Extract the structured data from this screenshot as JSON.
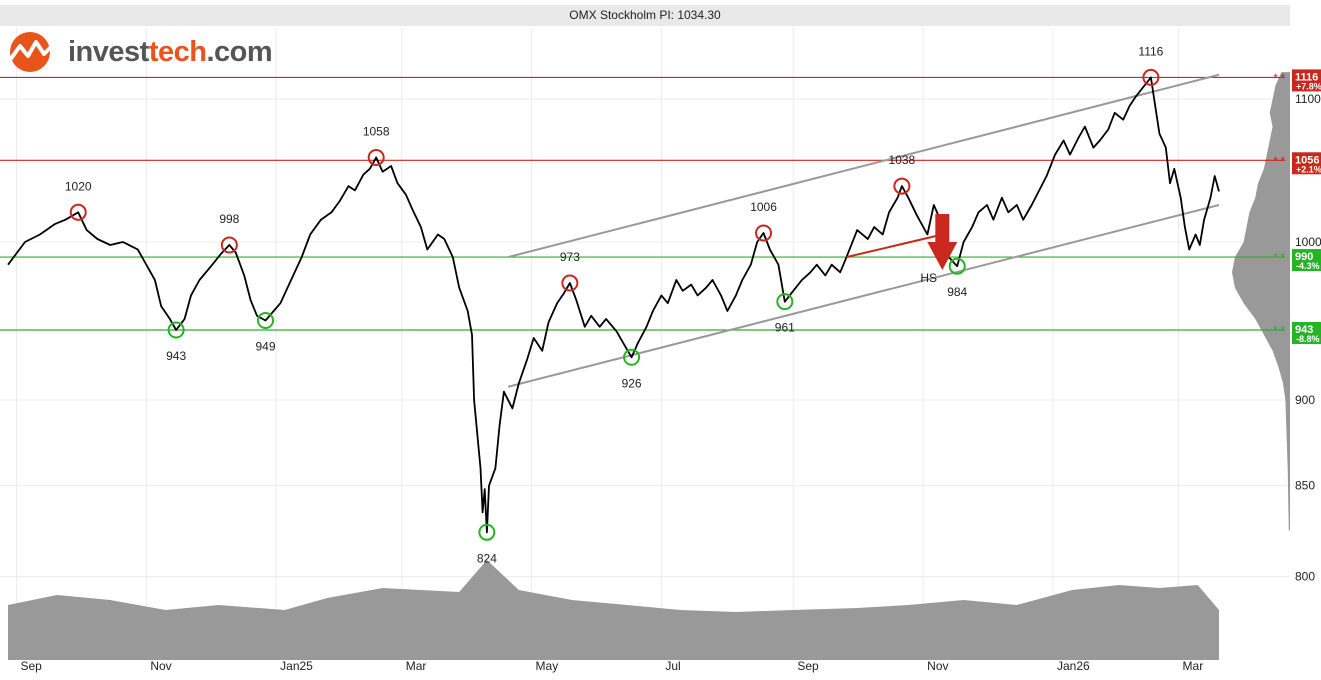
{
  "chart_data": {
    "type": "line",
    "title": "OMX Stockholm PI: 1034.30",
    "last_value": 1034.3,
    "y_axis": {
      "scale": "log",
      "position": "right",
      "ticks": [
        800,
        850,
        900,
        1000,
        1100
      ]
    },
    "x_axis": {
      "labels": [
        "Sep",
        "Nov",
        "Jan25",
        "Mar",
        "May",
        "Jul",
        "Sep",
        "Nov",
        "Jan26",
        "Mar"
      ],
      "start": "2024-08-28",
      "end": "2026-03-20"
    },
    "grid": true,
    "series": [
      {
        "points": [
          [
            "2024-08-28",
            985
          ],
          [
            "2024-09-05",
            1000
          ],
          [
            "2024-09-12",
            1005
          ],
          [
            "2024-09-19",
            1012
          ],
          [
            "2024-09-24",
            1015
          ],
          [
            "2024-09-30",
            1020
          ],
          [
            "2024-10-04",
            1008
          ],
          [
            "2024-10-09",
            1002
          ],
          [
            "2024-10-15",
            998
          ],
          [
            "2024-10-21",
            1000
          ],
          [
            "2024-10-28",
            995
          ],
          [
            "2024-11-01",
            985
          ],
          [
            "2024-11-05",
            975
          ],
          [
            "2024-11-08",
            958
          ],
          [
            "2024-11-12",
            950
          ],
          [
            "2024-11-15",
            943
          ],
          [
            "2024-11-19",
            950
          ],
          [
            "2024-11-22",
            965
          ],
          [
            "2024-11-26",
            975
          ],
          [
            "2024-12-02",
            985
          ],
          [
            "2024-12-06",
            992
          ],
          [
            "2024-12-10",
            998
          ],
          [
            "2024-12-13",
            993
          ],
          [
            "2024-12-17",
            978
          ],
          [
            "2024-12-20",
            962
          ],
          [
            "2024-12-23",
            952
          ],
          [
            "2024-12-27",
            949
          ],
          [
            "2025-01-03",
            960
          ],
          [
            "2025-01-08",
            975
          ],
          [
            "2025-01-13",
            990
          ],
          [
            "2025-01-17",
            1005
          ],
          [
            "2025-01-22",
            1015
          ],
          [
            "2025-01-27",
            1020
          ],
          [
            "2025-01-31",
            1028
          ],
          [
            "2025-02-04",
            1038
          ],
          [
            "2025-02-07",
            1035
          ],
          [
            "2025-02-11",
            1046
          ],
          [
            "2025-02-14",
            1050
          ],
          [
            "2025-02-17",
            1058
          ],
          [
            "2025-02-20",
            1048
          ],
          [
            "2025-02-24",
            1052
          ],
          [
            "2025-02-27",
            1040
          ],
          [
            "2025-03-03",
            1032
          ],
          [
            "2025-03-06",
            1022
          ],
          [
            "2025-03-10",
            1010
          ],
          [
            "2025-03-13",
            995
          ],
          [
            "2025-03-18",
            1005
          ],
          [
            "2025-03-21",
            1002
          ],
          [
            "2025-03-25",
            990
          ],
          [
            "2025-03-28",
            970
          ],
          [
            "2025-04-01",
            955
          ],
          [
            "2025-04-03",
            940
          ],
          [
            "2025-04-04",
            900
          ],
          [
            "2025-04-07",
            860
          ],
          [
            "2025-04-08",
            835
          ],
          [
            "2025-04-09",
            848
          ],
          [
            "2025-04-10",
            824
          ],
          [
            "2025-04-11",
            850
          ],
          [
            "2025-04-14",
            860
          ],
          [
            "2025-04-16",
            885
          ],
          [
            "2025-04-18",
            905
          ],
          [
            "2025-04-22",
            895
          ],
          [
            "2025-04-25",
            910
          ],
          [
            "2025-04-29",
            925
          ],
          [
            "2025-05-02",
            938
          ],
          [
            "2025-05-06",
            930
          ],
          [
            "2025-05-09",
            948
          ],
          [
            "2025-05-13",
            960
          ],
          [
            "2025-05-16",
            966
          ],
          [
            "2025-05-19",
            973
          ],
          [
            "2025-05-22",
            962
          ],
          [
            "2025-05-26",
            945
          ],
          [
            "2025-05-29",
            952
          ],
          [
            "2025-06-02",
            945
          ],
          [
            "2025-06-05",
            950
          ],
          [
            "2025-06-10",
            942
          ],
          [
            "2025-06-13",
            935
          ],
          [
            "2025-06-17",
            926
          ],
          [
            "2025-06-20",
            935
          ],
          [
            "2025-06-24",
            945
          ],
          [
            "2025-06-27",
            955
          ],
          [
            "2025-07-01",
            965
          ],
          [
            "2025-07-04",
            960
          ],
          [
            "2025-07-08",
            975
          ],
          [
            "2025-07-11",
            968
          ],
          [
            "2025-07-15",
            972
          ],
          [
            "2025-07-18",
            965
          ],
          [
            "2025-07-22",
            970
          ],
          [
            "2025-07-25",
            975
          ],
          [
            "2025-07-29",
            965
          ],
          [
            "2025-08-01",
            955
          ],
          [
            "2025-08-05",
            965
          ],
          [
            "2025-08-08",
            975
          ],
          [
            "2025-08-12",
            985
          ],
          [
            "2025-08-15",
            1000
          ],
          [
            "2025-08-18",
            1006
          ],
          [
            "2025-08-21",
            995
          ],
          [
            "2025-08-25",
            985
          ],
          [
            "2025-08-28",
            961
          ],
          [
            "2025-09-01",
            968
          ],
          [
            "2025-09-05",
            975
          ],
          [
            "2025-09-09",
            980
          ],
          [
            "2025-09-12",
            985
          ],
          [
            "2025-09-16",
            978
          ],
          [
            "2025-09-19",
            985
          ],
          [
            "2025-09-23",
            980
          ],
          [
            "2025-09-26",
            990
          ],
          [
            "2025-10-01",
            1008
          ],
          [
            "2025-10-06",
            1002
          ],
          [
            "2025-10-09",
            1010
          ],
          [
            "2025-10-13",
            1005
          ],
          [
            "2025-10-16",
            1020
          ],
          [
            "2025-10-20",
            1030
          ],
          [
            "2025-10-22",
            1038
          ],
          [
            "2025-10-25",
            1030
          ],
          [
            "2025-10-29",
            1018
          ],
          [
            "2025-11-03",
            1005
          ],
          [
            "2025-11-06",
            1025
          ],
          [
            "2025-11-10",
            1012
          ],
          [
            "2025-11-13",
            990
          ],
          [
            "2025-11-17",
            984
          ],
          [
            "2025-11-20",
            1000
          ],
          [
            "2025-11-24",
            1010
          ],
          [
            "2025-11-27",
            1020
          ],
          [
            "2025-12-01",
            1025
          ],
          [
            "2025-12-04",
            1015
          ],
          [
            "2025-12-08",
            1030
          ],
          [
            "2025-12-11",
            1020
          ],
          [
            "2025-12-15",
            1025
          ],
          [
            "2025-12-18",
            1015
          ],
          [
            "2025-12-22",
            1025
          ],
          [
            "2025-12-29",
            1045
          ],
          [
            "2026-01-02",
            1060
          ],
          [
            "2026-01-06",
            1070
          ],
          [
            "2026-01-09",
            1060
          ],
          [
            "2026-01-13",
            1072
          ],
          [
            "2026-01-16",
            1080
          ],
          [
            "2026-01-20",
            1065
          ],
          [
            "2026-01-23",
            1070
          ],
          [
            "2026-01-27",
            1078
          ],
          [
            "2026-01-30",
            1090
          ],
          [
            "2026-02-03",
            1085
          ],
          [
            "2026-02-06",
            1095
          ],
          [
            "2026-02-09",
            1102
          ],
          [
            "2026-02-12",
            1108
          ],
          [
            "2026-02-16",
            1116
          ],
          [
            "2026-02-18",
            1095
          ],
          [
            "2026-02-20",
            1075
          ],
          [
            "2026-02-23",
            1065
          ],
          [
            "2026-02-25",
            1040
          ],
          [
            "2026-02-27",
            1050
          ],
          [
            "2026-03-02",
            1030
          ],
          [
            "2026-03-04",
            1010
          ],
          [
            "2026-03-06",
            995
          ],
          [
            "2026-03-09",
            1005
          ],
          [
            "2026-03-11",
            998
          ],
          [
            "2026-03-13",
            1015
          ],
          [
            "2026-03-16",
            1030
          ],
          [
            "2026-03-18",
            1045
          ],
          [
            "2026-03-20",
            1034.3
          ]
        ]
      }
    ],
    "peaks": [
      {
        "date": "2024-09-30",
        "value": 1020,
        "label": "1020"
      },
      {
        "date": "2024-12-10",
        "value": 998,
        "label": "998"
      },
      {
        "date": "2025-02-17",
        "value": 1058,
        "label": "1058"
      },
      {
        "date": "2025-05-19",
        "value": 973,
        "label": "973"
      },
      {
        "date": "2025-08-18",
        "value": 1006,
        "label": "1006"
      },
      {
        "date": "2025-10-22",
        "value": 1038,
        "label": "1038"
      },
      {
        "date": "2026-02-16",
        "value": 1116,
        "label": "1116"
      }
    ],
    "troughs": [
      {
        "date": "2024-11-15",
        "value": 943,
        "label": "943"
      },
      {
        "date": "2024-12-27",
        "value": 949,
        "label": "949"
      },
      {
        "date": "2025-04-10",
        "value": 824,
        "label": "824"
      },
      {
        "date": "2025-06-17",
        "value": 926,
        "label": "926"
      },
      {
        "date": "2025-08-28",
        "value": 961,
        "label": "961"
      },
      {
        "date": "2025-11-17",
        "value": 984,
        "label": "984"
      }
    ],
    "resistance_levels": [
      {
        "value": 1116,
        "label": "1116",
        "pct": "+7.8%"
      },
      {
        "value": 1056,
        "label": "1056",
        "pct": "+2.1%"
      }
    ],
    "support_levels": [
      {
        "value": 990,
        "label": "990",
        "pct": "-4.3%"
      },
      {
        "value": 943,
        "label": "943",
        "pct": "-8.8%"
      }
    ],
    "trend_channel": {
      "upper": [
        [
          "2025-04-20",
          990
        ],
        [
          "2026-03-20",
          1118
        ]
      ],
      "lower": [
        [
          "2025-04-20",
          908
        ],
        [
          "2026-03-20",
          1025
        ]
      ]
    },
    "pattern": {
      "name": "HS",
      "neckline": [
        [
          "2025-09-26",
          990
        ],
        [
          "2025-11-10",
          1005
        ]
      ],
      "arrow_date": "2025-11-10",
      "arrow_value": 1000
    },
    "volume": [
      [
        "2024-08-28",
        0.55
      ],
      [
        "2024-09-20",
        0.65
      ],
      [
        "2024-10-15",
        0.6
      ],
      [
        "2024-11-10",
        0.5
      ],
      [
        "2024-12-05",
        0.55
      ],
      [
        "2025-01-05",
        0.5
      ],
      [
        "2025-01-25",
        0.62
      ],
      [
        "2025-02-20",
        0.72
      ],
      [
        "2025-03-10",
        0.7
      ],
      [
        "2025-03-28",
        0.68
      ],
      [
        "2025-04-10",
        1.0
      ],
      [
        "2025-04-25",
        0.7
      ],
      [
        "2025-05-20",
        0.6
      ],
      [
        "2025-06-15",
        0.55
      ],
      [
        "2025-07-10",
        0.5
      ],
      [
        "2025-08-05",
        0.48
      ],
      [
        "2025-09-01",
        0.5
      ],
      [
        "2025-10-01",
        0.52
      ],
      [
        "2025-10-25",
        0.55
      ],
      [
        "2025-11-20",
        0.6
      ],
      [
        "2025-12-15",
        0.55
      ],
      [
        "2026-01-10",
        0.7
      ],
      [
        "2026-02-01",
        0.75
      ],
      [
        "2026-02-20",
        0.72
      ],
      [
        "2026-03-10",
        0.75
      ],
      [
        "2026-03-20",
        0.5
      ]
    ],
    "volume_profile": [
      [
        1120,
        0.15
      ],
      [
        1110,
        0.25
      ],
      [
        1100,
        0.3
      ],
      [
        1090,
        0.35
      ],
      [
        1080,
        0.3
      ],
      [
        1070,
        0.35
      ],
      [
        1060,
        0.4
      ],
      [
        1050,
        0.45
      ],
      [
        1040,
        0.55
      ],
      [
        1030,
        0.6
      ],
      [
        1020,
        0.7
      ],
      [
        1010,
        0.75
      ],
      [
        1000,
        0.8
      ],
      [
        990,
        0.95
      ],
      [
        980,
        1.0
      ],
      [
        970,
        0.95
      ],
      [
        960,
        0.8
      ],
      [
        950,
        0.6
      ],
      [
        940,
        0.45
      ],
      [
        930,
        0.3
      ],
      [
        920,
        0.2
      ],
      [
        910,
        0.12
      ],
      [
        900,
        0.08
      ],
      [
        880,
        0.06
      ],
      [
        860,
        0.04
      ],
      [
        840,
        0.03
      ],
      [
        825,
        0.02
      ]
    ]
  },
  "logo": {
    "text_a": "invest",
    "text_b": "tech",
    "text_c": ".com",
    "accent": "#e8541a"
  },
  "colors": {
    "price": "#000000",
    "resistance": "#c8281e",
    "support": "#26b426",
    "channel": "#999999",
    "volume": "#999999"
  }
}
